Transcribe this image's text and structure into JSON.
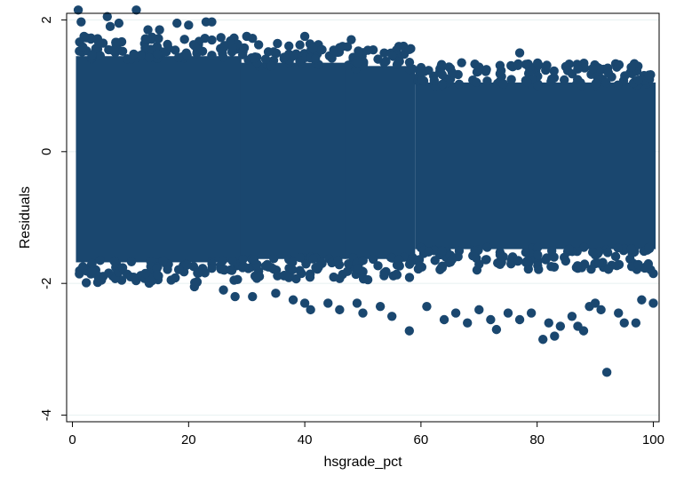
{
  "chart_data": {
    "type": "scatter",
    "title": "",
    "xlabel": "hsgrade_pct",
    "ylabel": "Residuals",
    "xlim": [
      -1,
      101
    ],
    "ylim": [
      -4.1,
      2.1
    ],
    "xticks": [
      "0",
      "20",
      "40",
      "60",
      "80",
      "100"
    ],
    "yticks": [
      "-4",
      "-2",
      "0",
      "2"
    ],
    "grid": "horizontal",
    "legend": "none",
    "colors": {
      "marker": "#1a476f",
      "gridline": "#eaf2f3",
      "frame": "#000000",
      "background": "#ffffff"
    },
    "description_of_density": "dense point cloud across x from ~1 to ~100; main band roughly -1.8 to 1.5, tapering as x increases; sparse outliers below",
    "bands": [
      {
        "x": [
          1,
          28.7
        ],
        "lo": -1.8,
        "hi": 1.55
      },
      {
        "x": [
          29.3,
          46.6
        ],
        "lo": -1.75,
        "hi": 1.45
      },
      {
        "x": [
          47.3,
          58.6
        ],
        "lo": -1.75,
        "hi": 1.4
      },
      {
        "x": [
          59.4,
          100
        ],
        "lo": -1.6,
        "hi": 1.15
      }
    ],
    "outliers": [
      [
        1,
        2.15
      ],
      [
        1.5,
        1.97
      ],
      [
        2,
        1.75
      ],
      [
        6,
        2.05
      ],
      [
        6.5,
        1.9
      ],
      [
        8,
        1.95
      ],
      [
        11,
        2.15
      ],
      [
        13,
        1.85
      ],
      [
        15,
        1.85
      ],
      [
        18,
        1.95
      ],
      [
        20,
        1.92
      ],
      [
        23,
        1.97
      ],
      [
        24,
        1.97
      ],
      [
        30,
        1.75
      ],
      [
        31,
        1.72
      ],
      [
        40,
        1.75
      ],
      [
        48,
        1.7
      ],
      [
        57,
        1.6
      ],
      [
        58,
        1.55
      ],
      [
        67,
        1.35
      ],
      [
        77,
        1.5
      ],
      [
        5,
        -1.95
      ],
      [
        10,
        -1.9
      ],
      [
        17,
        -1.95
      ],
      [
        21,
        -2.05
      ],
      [
        26,
        -2.1
      ],
      [
        28,
        -2.2
      ],
      [
        31,
        -2.2
      ],
      [
        35,
        -2.15
      ],
      [
        38,
        -2.25
      ],
      [
        40,
        -2.3
      ],
      [
        41,
        -2.4
      ],
      [
        44,
        -2.3
      ],
      [
        46,
        -2.4
      ],
      [
        49,
        -2.3
      ],
      [
        50,
        -2.45
      ],
      [
        53,
        -2.35
      ],
      [
        55,
        -2.5
      ],
      [
        58,
        -2.72
      ],
      [
        61,
        -2.35
      ],
      [
        64,
        -2.55
      ],
      [
        66,
        -2.45
      ],
      [
        68,
        -2.6
      ],
      [
        70,
        -2.4
      ],
      [
        72,
        -2.55
      ],
      [
        73,
        -2.7
      ],
      [
        75,
        -2.45
      ],
      [
        77,
        -2.55
      ],
      [
        79,
        -2.45
      ],
      [
        81,
        -2.85
      ],
      [
        82,
        -2.6
      ],
      [
        83,
        -2.8
      ],
      [
        84,
        -2.65
      ],
      [
        86,
        -2.5
      ],
      [
        87,
        -2.65
      ],
      [
        88,
        -2.72
      ],
      [
        89,
        -2.35
      ],
      [
        90,
        -2.3
      ],
      [
        91,
        -2.4
      ],
      [
        92,
        -3.35
      ],
      [
        94,
        -2.45
      ],
      [
        95,
        -2.6
      ],
      [
        97,
        -2.6
      ],
      [
        98,
        -2.25
      ],
      [
        100,
        -2.3
      ],
      [
        100,
        -1.85
      ]
    ]
  }
}
